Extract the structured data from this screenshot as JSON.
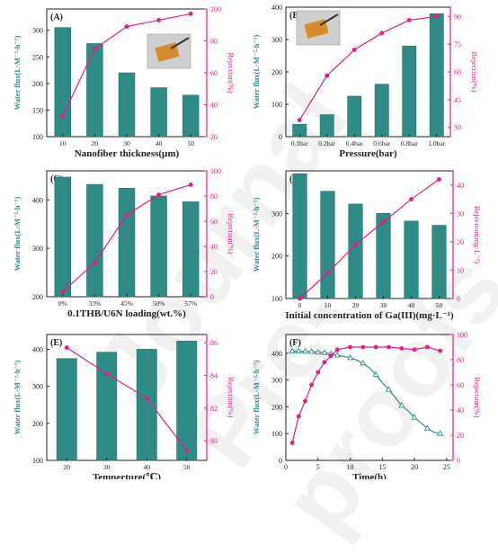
{
  "colors": {
    "bar": "#2e8b85",
    "bar_dark": "#1f6b66",
    "line": "#e8198b",
    "axis": "#222222",
    "left_axis_text": "#2e8b85",
    "right_axis_text": "#e8198b"
  },
  "watermark": "Journal Pre-proofs",
  "chart_data": [
    {
      "type": "bar",
      "panel": "(A)",
      "xlabel": "Nanofiber thickness(µm)",
      "ylabel": "Water flux(L·M⁻²·h⁻¹)",
      "y2label": "Rejection(%)",
      "categories": [
        "10",
        "20",
        "30",
        "40",
        "50"
      ],
      "ylim": [
        100,
        340
      ],
      "yticks": [
        "100",
        "150",
        "200",
        "250",
        "300"
      ],
      "y2lim": [
        20,
        100
      ],
      "y2ticks": [
        "20",
        "40",
        "60",
        "80",
        "100"
      ],
      "bar_values": [
        305,
        275,
        220,
        192,
        178
      ],
      "line_values": [
        33,
        75,
        89,
        93,
        97
      ],
      "line_marker": "circle",
      "inset_photo": true
    },
    {
      "type": "bar",
      "panel": "(B)",
      "xlabel": "Pressure(bar)",
      "ylabel": "Water flux(L·M⁻²·h⁻¹)",
      "y2label": "Rejection(%)",
      "categories": [
        "0.1bar",
        "0.2bar",
        "0.4bar",
        "0.6bar",
        "0.8bar",
        "1.0bar"
      ],
      "ylim": [
        0,
        400
      ],
      "yticks": [
        "0",
        "100",
        "200",
        "300",
        "400"
      ],
      "y2lim": [
        25,
        95
      ],
      "y2ticks": [
        "30",
        "45",
        "60",
        "75",
        "90"
      ],
      "bar_values": [
        38,
        68,
        125,
        162,
        280,
        380
      ],
      "line_values": [
        34,
        58,
        72,
        81,
        88,
        90
      ],
      "line_marker": "circle",
      "inset_photo": true
    },
    {
      "type": "bar",
      "panel": "(C)",
      "xlabel": "0.1THB/U6N loading(wt.%)",
      "ylabel": "Water flux(L·M⁻²·h⁻¹)",
      "y2label": "Rejection(%)",
      "categories": [
        "0%",
        "33%",
        "45%",
        "50%",
        "57%"
      ],
      "ylim": [
        200,
        460
      ],
      "yticks": [
        "200",
        "300",
        "400"
      ],
      "y2lim": [
        0,
        100
      ],
      "y2ticks": [
        "0",
        "20",
        "40",
        "60",
        "80",
        "100"
      ],
      "bar_values": [
        447,
        432,
        424,
        408,
        396
      ],
      "line_values": [
        4,
        27,
        65,
        81,
        89
      ],
      "line_marker": "circle",
      "inset_photo": false
    },
    {
      "type": "bar",
      "panel": "(D)",
      "xlabel": "Initial concentration of Ga(III)(mg·L⁻¹)",
      "ylabel": "Water flux(L·M⁻²·h⁻¹)",
      "y2label": "Rejection(mg·L⁻¹)",
      "categories": [
        "0",
        "10",
        "20",
        "30",
        "40",
        "50"
      ],
      "ylim": [
        100,
        400
      ],
      "yticks": [
        "100",
        "200",
        "300"
      ],
      "y2lim": [
        0,
        45
      ],
      "y2ticks": [
        "0",
        "10",
        "20",
        "30",
        "40"
      ],
      "bar_values": [
        393,
        352,
        322,
        300,
        282,
        272
      ],
      "line_values": [
        0,
        9,
        19,
        27,
        35,
        42
      ],
      "line_marker": "circle",
      "inset_photo": false
    },
    {
      "type": "bar",
      "panel": "(E)",
      "xlabel": "Temperture(℃)",
      "ylabel": "Water flux(L·M⁻²·h⁻¹)",
      "y2label": "Rejection(%)",
      "categories": [
        "20",
        "30",
        "40",
        "50"
      ],
      "ylim": [
        100,
        440
      ],
      "yticks": [
        "100",
        "200",
        "300",
        "400"
      ],
      "y2lim": [
        78.8,
        86.5
      ],
      "y2ticks": [
        "80",
        "82",
        "84",
        "86"
      ],
      "bar_values": [
        375,
        392,
        400,
        422
      ],
      "line_values": [
        85.7,
        84.1,
        82.6,
        79.4
      ],
      "line_marker": "circle",
      "inset_photo": false
    },
    {
      "type": "line",
      "panel": "(F)",
      "xlabel": "Time(h)",
      "ylabel": "Water flux(L·M⁻²·h⁻¹)",
      "y2label": "Rejection(%)",
      "xlim": [
        0,
        26
      ],
      "xticks": [
        "0",
        "5",
        "10",
        "15",
        "20",
        "25"
      ],
      "ylim": [
        0,
        470
      ],
      "yticks": [
        "0",
        "100",
        "200",
        "300",
        "400"
      ],
      "y2lim": [
        0,
        100
      ],
      "y2ticks": [
        "0",
        "20",
        "40",
        "60",
        "80",
        "100"
      ],
      "flux_x": [
        1,
        2,
        3,
        4,
        5,
        6,
        7,
        8,
        9,
        10,
        11,
        12,
        13,
        14,
        15,
        16,
        17,
        18,
        19,
        20,
        21,
        22,
        23,
        24
      ],
      "flux_values": [
        408,
        408,
        407,
        406,
        404,
        402,
        398,
        393,
        388,
        383,
        375,
        363,
        345,
        320,
        290,
        265,
        235,
        205,
        185,
        160,
        140,
        120,
        105,
        100
      ],
      "flux_marker_every": [
        1,
        2,
        3,
        4,
        5,
        6,
        7,
        8,
        10,
        12,
        14,
        16,
        18,
        20,
        22,
        24
      ],
      "rejection_x": [
        1,
        2,
        3,
        4,
        5,
        6,
        7,
        8,
        10,
        12,
        14,
        16,
        18,
        20,
        22,
        24
      ],
      "rejection_values": [
        14,
        35,
        47,
        60,
        70,
        78,
        83,
        88,
        90,
        90,
        90,
        90,
        89,
        88,
        90,
        87
      ],
      "inset_photo": false
    }
  ]
}
